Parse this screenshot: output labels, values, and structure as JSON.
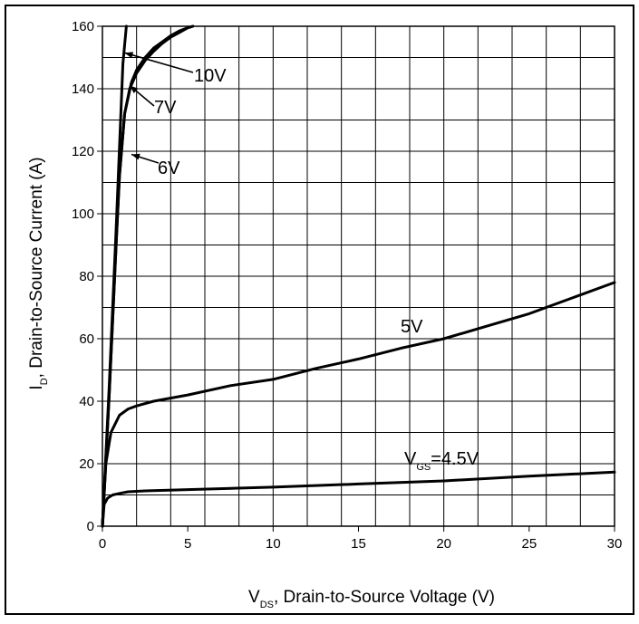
{
  "chart_data": {
    "type": "line",
    "xlabel": {
      "main": "V",
      "sub": "DS",
      "rest": ", Drain-to-Source Voltage (V)"
    },
    "ylabel": {
      "main": "I",
      "sub": "D",
      "rest": ", Drain-to-Source Current (A)"
    },
    "xlim": [
      0,
      30
    ],
    "ylim": [
      0,
      160
    ],
    "x_ticks": [
      "0",
      "5",
      "10",
      "15",
      "20",
      "25",
      "30"
    ],
    "y_ticks": [
      "0",
      "20",
      "40",
      "60",
      "80",
      "100",
      "120",
      "140",
      "160"
    ],
    "grid": true,
    "grid_x_step": 2,
    "grid_y_step": 10,
    "annotations": [
      {
        "text": "10V"
      },
      {
        "text": "7V"
      },
      {
        "text": "6V"
      },
      {
        "text": "5V"
      },
      {
        "text": "V",
        "sub": "GS",
        "rest": "=4.5V"
      }
    ],
    "series": [
      {
        "name": "10V",
        "x": [
          0,
          0.4,
          0.8,
          1.2,
          1.4
        ],
        "y": [
          0,
          45,
          95,
          148,
          160
        ]
      },
      {
        "name": "7V",
        "x": [
          0,
          0.4,
          0.8,
          1.0,
          1.3,
          1.7,
          2.0,
          2.5,
          3.0,
          3.5,
          4.0,
          4.5,
          5.0,
          5.3
        ],
        "y": [
          0,
          42,
          90,
          112,
          132,
          142,
          146,
          150,
          153,
          155,
          157,
          158.5,
          159.5,
          160
        ]
      },
      {
        "name": "6V",
        "x": [
          0,
          0.4,
          0.8,
          1.0,
          1.3,
          1.6,
          2.0,
          2.5,
          3.0,
          3.5,
          4.0,
          4.5,
          5.0,
          5.3
        ],
        "y": [
          0,
          42,
          90,
          112,
          132,
          140,
          145,
          149,
          152,
          154.5,
          156.5,
          158,
          159.5,
          160
        ]
      },
      {
        "name": "5V",
        "x": [
          0,
          0.2,
          0.5,
          1.0,
          1.5,
          2.0,
          3.0,
          5.0,
          7.5,
          10,
          12.5,
          15,
          17.5,
          20,
          22.5,
          25,
          27.5,
          30
        ],
        "y": [
          0,
          20,
          30,
          35.5,
          37.5,
          38.5,
          40,
          42,
          45,
          47,
          50.5,
          53.5,
          57,
          60,
          64,
          68,
          73,
          78
        ]
      },
      {
        "name": "4.5V",
        "x": [
          0,
          0.1,
          0.3,
          0.6,
          1.0,
          1.5,
          2.5,
          5,
          10,
          15,
          20,
          25,
          30
        ],
        "y": [
          0,
          7,
          9,
          10,
          10.5,
          11,
          11.3,
          11.7,
          12.5,
          13.5,
          14.5,
          16,
          17.3
        ]
      }
    ]
  }
}
